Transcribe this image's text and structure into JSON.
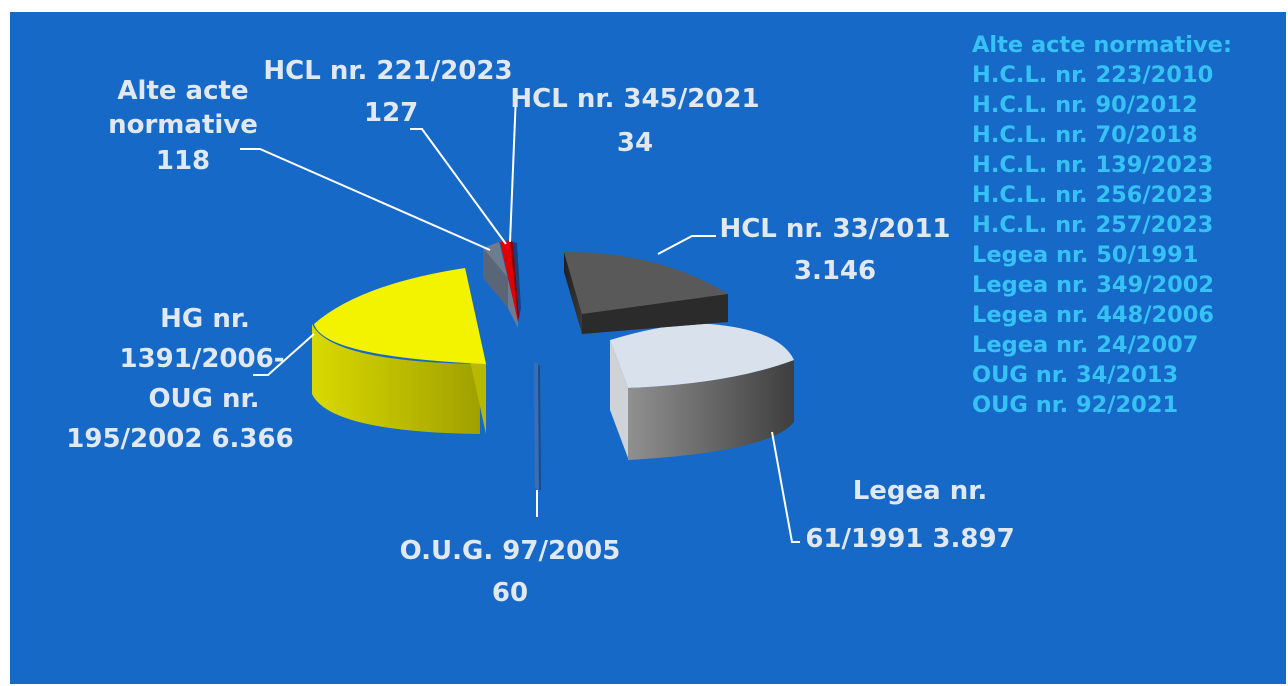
{
  "chart_data": {
    "type": "pie",
    "style": "3d-exploded",
    "slices": [
      {
        "label": "HCL nr. 33/2011",
        "value_label": "3.146",
        "value": 3146,
        "color": "#4a4a4a"
      },
      {
        "label": "Legea nr. 61/1991",
        "value_label": "3.897",
        "value": 3897,
        "color": "#d4dde8"
      },
      {
        "label": "O.U.G. 97/2005",
        "value_label": "60",
        "value": 60,
        "color": "#3a6fb3"
      },
      {
        "label": "HG nr. 1391/2006-OUG nr. 195/2002",
        "value_label": "6.366",
        "value": 6366,
        "color": "#f5f500"
      },
      {
        "label": "Alte acte normative",
        "value_label": "118",
        "value": 118,
        "color": "#8896a8"
      },
      {
        "label": "HCL nr. 221/2023",
        "value_label": "127",
        "value": 127,
        "color": "#e00000"
      },
      {
        "label": "HCL nr. 345/2021",
        "value_label": "34",
        "value": 34,
        "color": "#1a3f80"
      }
    ]
  },
  "labels": {
    "alte_line1": "Alte acte",
    "alte_line2": "normative",
    "alte_value": "118",
    "hcl221_line1": "HCL nr. 221/2023",
    "hcl221_value": "127",
    "hcl345_line1": "HCL nr. 345/2021",
    "hcl345_value": "34",
    "hcl33_line1": "HCL nr. 33/2011",
    "hcl33_value": "3.146",
    "hg_line1": "HG nr.",
    "hg_line2": "1391/2006-",
    "hg_line3": "OUG nr.",
    "hg_line4": "195/2002 6.366",
    "legea61_line1": "Legea nr.",
    "legea61_line2": "61/1991 3.897",
    "oug97_line1": "O.U.G. 97/2005",
    "oug97_value": "60"
  },
  "side_list": {
    "title": "Alte acte normative:",
    "items": [
      "H.C.L. nr. 223/2010",
      "H.C.L. nr. 90/2012",
      "H.C.L. nr. 70/2018",
      "H.C.L. nr. 139/2023",
      "H.C.L. nr. 256/2023",
      "H.C.L. nr. 257/2023",
      "Legea nr. 50/1991",
      "Legea nr. 349/2002",
      "Legea nr. 448/2006",
      "Legea nr. 24/2007",
      "OUG nr. 34/2013",
      "OUG nr. 92/2021"
    ]
  },
  "colors": {
    "background": "#1769c8",
    "label_text": "#e1e8f0",
    "list_text": "#37c2f6",
    "leader_line": "#ffffff"
  }
}
